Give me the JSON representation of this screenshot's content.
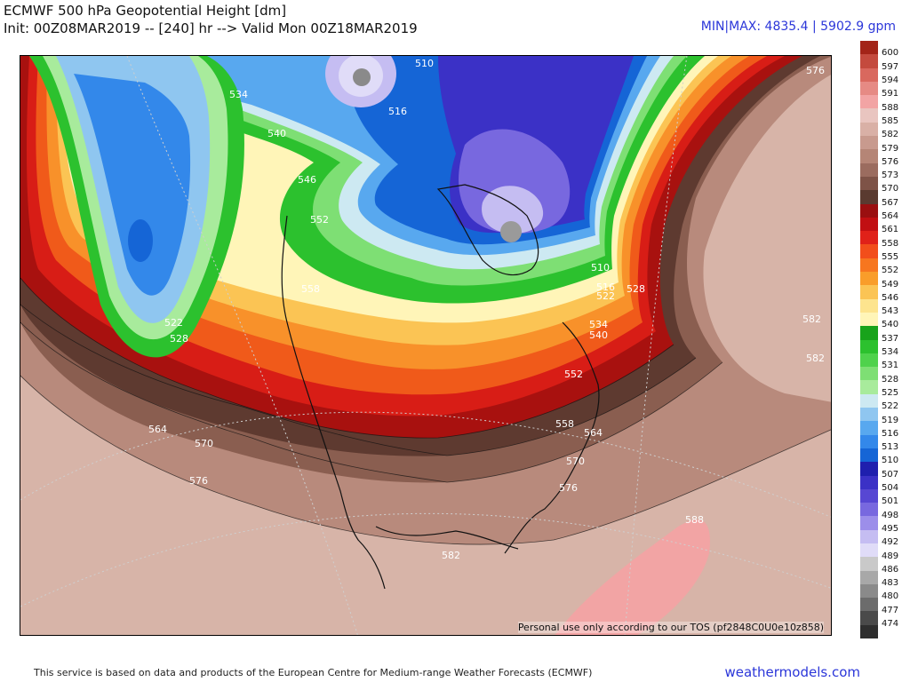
{
  "header": {
    "title": "ECMWF 500 hPa Geopotential Height [dm]",
    "init_line": "Init: 00Z08MAR2019 -- [240] hr --> Valid Mon 00Z18MAR2019",
    "minmax": "MIN|MAX: 4835.4 | 5902.9 gpm"
  },
  "map": {
    "tos_notice": "Personal use only according to our TOS (pf2848C0U0e10z858)",
    "contour_labels": [
      "510",
      "516",
      "534",
      "540",
      "546",
      "552",
      "558",
      "522",
      "528",
      "564",
      "570",
      "576",
      "582",
      "588",
      "510",
      "516",
      "522",
      "528",
      "534",
      "540",
      "552",
      "558",
      "564",
      "570",
      "576",
      "582",
      "576",
      "582"
    ]
  },
  "colorbar": {
    "labels": [
      "600",
      "597",
      "594",
      "591",
      "588",
      "585",
      "582",
      "579",
      "576",
      "573",
      "570",
      "567",
      "564",
      "561",
      "558",
      "555",
      "552",
      "549",
      "546",
      "543",
      "540",
      "537",
      "534",
      "531",
      "528",
      "525",
      "522",
      "519",
      "516",
      "513",
      "510",
      "507",
      "504",
      "501",
      "498",
      "495",
      "492",
      "489",
      "486",
      "483",
      "480",
      "477",
      "474"
    ],
    "colors": [
      "#a32418",
      "#c44a3e",
      "#d9685e",
      "#e68a84",
      "#f2a4a4",
      "#e9c5c0",
      "#d9b0a6",
      "#c89a8e",
      "#b58576",
      "#9b6c5f",
      "#7e5347",
      "#5a3a30",
      "#9a0f10",
      "#c10f12",
      "#e02119",
      "#f24e1b",
      "#f7761f",
      "#f99d2a",
      "#fbc454",
      "#fde48e",
      "#fff5b8",
      "#18a31b",
      "#2cc12e",
      "#4fd24c",
      "#7edf74",
      "#a8eb9c",
      "#cde9f2",
      "#8fc6f0",
      "#58a8ef",
      "#3388ea",
      "#1565d6",
      "#1f1fae",
      "#3b31c6",
      "#5747d3",
      "#7868df",
      "#9c8eea",
      "#c5bdf2",
      "#e0dcf8",
      "#c9c9c9",
      "#a8a8a8",
      "#8a8a8a",
      "#6c6c6c",
      "#4a4a4a",
      "#2e2e2e"
    ]
  },
  "footer": {
    "source": "This service is based on data and products of the European Centre for Medium-range Weather Forecasts (ECMWF)",
    "brand": "weathermodels.com"
  }
}
